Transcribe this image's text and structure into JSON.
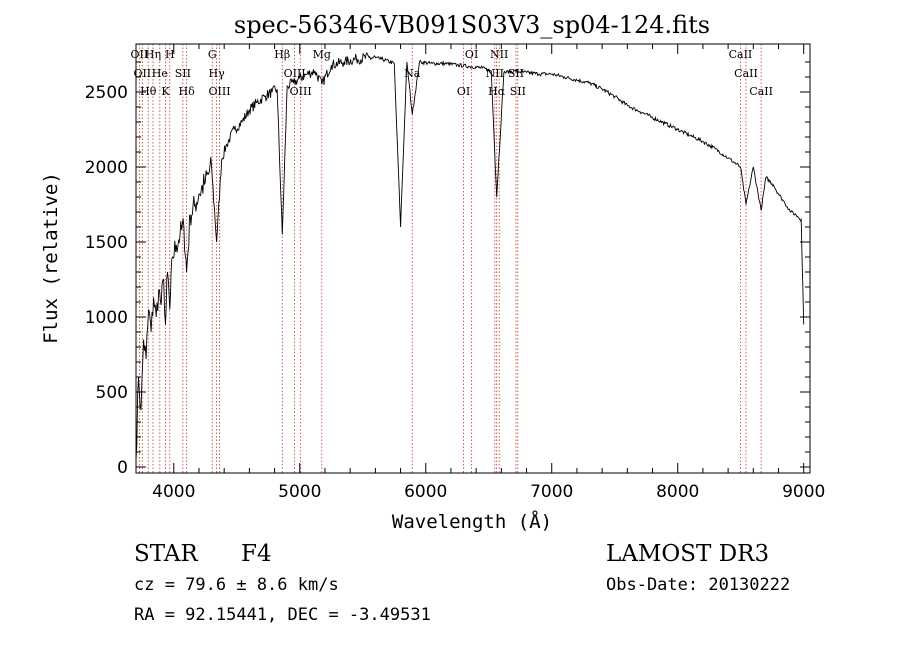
{
  "chart_data": {
    "type": "line",
    "title": "spec-56346-VB091S03V3_sp04-124.fits",
    "xlabel": "Wavelength (Å)",
    "ylabel": "Flux (relative)",
    "xlim": [
      3700,
      9050
    ],
    "ylim": [
      -40,
      2820
    ],
    "x_ticks": [
      4000,
      5000,
      6000,
      7000,
      8000,
      9000
    ],
    "y_ticks": [
      0,
      500,
      1000,
      1500,
      2000,
      2500
    ],
    "x_tick_labels": [
      "4000",
      "5000",
      "6000",
      "7000",
      "8000",
      "9000"
    ],
    "y_tick_labels": [
      "0",
      "500",
      "1000",
      "1500",
      "2000",
      "2500"
    ],
    "grid": false,
    "series": [
      {
        "name": "spectrum",
        "x": [
          3700,
          3720,
          3740,
          3760,
          3780,
          3800,
          3820,
          3840,
          3860,
          3880,
          3900,
          3920,
          3934,
          3950,
          3968,
          3990,
          4020,
          4050,
          4080,
          4102,
          4130,
          4170,
          4200,
          4250,
          4300,
          4340,
          4380,
          4420,
          4480,
          4540,
          4600,
          4660,
          4720,
          4780,
          4820,
          4861,
          4900,
          4950,
          5000,
          5060,
          5120,
          5175,
          5250,
          5350,
          5450,
          5550,
          5650,
          5750,
          5800,
          5850,
          5893,
          5950,
          6050,
          6150,
          6250,
          6350,
          6450,
          6520,
          6563,
          6620,
          6700,
          6800,
          6900,
          7000,
          7100,
          7200,
          7300,
          7400,
          7500,
          7600,
          7700,
          7800,
          7900,
          8000,
          8100,
          8200,
          8300,
          8400,
          8498,
          8542,
          8600,
          8662,
          8700,
          8760,
          8800,
          8850,
          8900,
          8940,
          8980,
          9000
        ],
        "y": [
          50,
          600,
          380,
          850,
          720,
          1050,
          900,
          1130,
          1000,
          1180,
          1080,
          1250,
          950,
          1300,
          1050,
          1400,
          1480,
          1550,
          1600,
          1300,
          1680,
          1750,
          1820,
          1900,
          2000,
          1500,
          2050,
          2150,
          2250,
          2300,
          2380,
          2430,
          2470,
          2500,
          2520,
          1550,
          2540,
          2560,
          2590,
          2620,
          2640,
          2550,
          2680,
          2700,
          2720,
          2730,
          2720,
          2690,
          1600,
          2700,
          2350,
          2700,
          2690,
          2690,
          2680,
          2670,
          2660,
          2640,
          1800,
          2630,
          2640,
          2630,
          2620,
          2620,
          2600,
          2580,
          2560,
          2520,
          2470,
          2410,
          2370,
          2330,
          2290,
          2250,
          2210,
          2170,
          2120,
          2060,
          2000,
          1750,
          2000,
          1710,
          1930,
          1880,
          1820,
          1760,
          1700,
          1680,
          1650,
          950
        ]
      }
    ],
    "lines": [
      {
        "wavelength": 3727,
        "label": "OII"
      },
      {
        "wavelength": 3750,
        "label": "OII"
      },
      {
        "wavelength": 3797,
        "label": "Hθ"
      },
      {
        "wavelength": 3835,
        "label": "Hη"
      },
      {
        "wavelength": 3889,
        "label": "He"
      },
      {
        "wavelength": 3934,
        "label": "K"
      },
      {
        "wavelength": 3968,
        "label": "H"
      },
      {
        "wavelength": 4072,
        "label": "SII"
      },
      {
        "wavelength": 4102,
        "label": "Hδ"
      },
      {
        "wavelength": 4305,
        "label": "G"
      },
      {
        "wavelength": 4340,
        "label": "Hγ"
      },
      {
        "wavelength": 4363,
        "label": "OIII"
      },
      {
        "wavelength": 4861,
        "label": "Hβ"
      },
      {
        "wavelength": 4959,
        "label": "OIII"
      },
      {
        "wavelength": 5007,
        "label": "OIII"
      },
      {
        "wavelength": 5175,
        "label": "Mg"
      },
      {
        "wavelength": 5893,
        "label": "Na"
      },
      {
        "wavelength": 6300,
        "label": "OI"
      },
      {
        "wavelength": 6364,
        "label": "OI"
      },
      {
        "wavelength": 6548,
        "label": "NII"
      },
      {
        "wavelength": 6563,
        "label": "Hα"
      },
      {
        "wavelength": 6583,
        "label": "NII"
      },
      {
        "wavelength": 6716,
        "label": "SII"
      },
      {
        "wavelength": 6731,
        "label": "SII"
      },
      {
        "wavelength": 8498,
        "label": "CaII"
      },
      {
        "wavelength": 8542,
        "label": "CaII"
      },
      {
        "wavelength": 8662,
        "label": "CaII"
      }
    ]
  },
  "info": {
    "class_label": "STAR",
    "subclass": "F4",
    "survey": "LAMOST DR3",
    "redshift": "cz =  79.6 ± 8.6 km/s",
    "obs_date": "Obs-Date: 20130222",
    "coords": "RA =  92.15441, DEC =  -3.49531"
  }
}
